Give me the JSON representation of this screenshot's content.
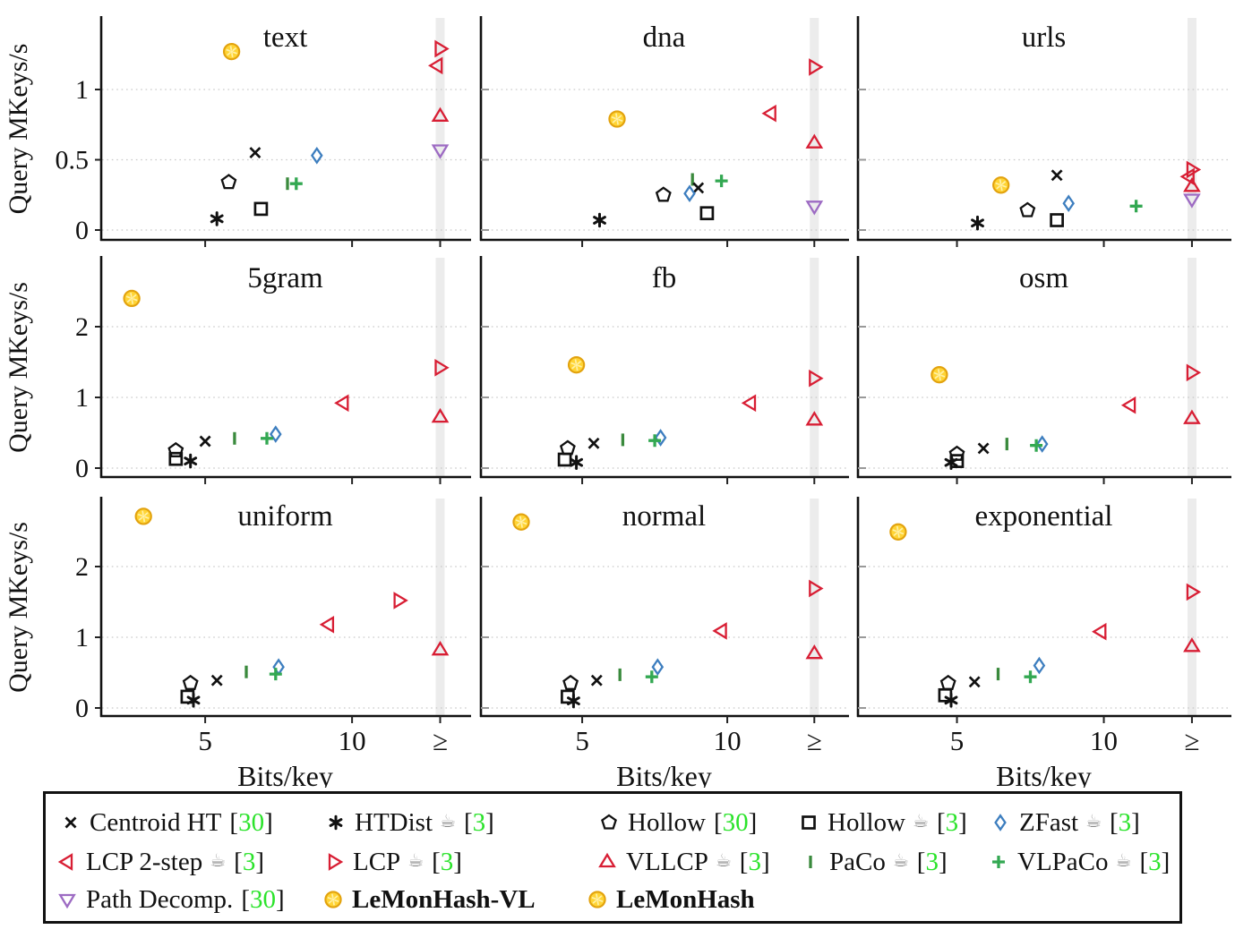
{
  "labels": {
    "ylabel": "Query MKeys/s",
    "xlabel": "Bits/key",
    "yticks_top": [
      "0",
      "0.5",
      "1"
    ],
    "yticks_mid": [
      "0",
      "1",
      "2"
    ],
    "xticks": [
      "5",
      "10",
      "≥"
    ]
  },
  "misc": {
    "cite_open": "[",
    "cite_close": "]",
    "coffee_glyph": "☕"
  },
  "colors": {
    "black": "#111111",
    "red": "#d81e34",
    "blue": "#3d7ebf",
    "paco_green": "#3a8a3d",
    "vlpaco_green": "#33a852",
    "purple": "#9d6bc3",
    "lemon_fill": "#FFD435",
    "lemon_rim": "#E2A20E",
    "cite_green": "#2be32b",
    "band_gray": "#ececec",
    "grid_gray": "#c9c9c9"
  },
  "series_defs": [
    {
      "id": "centroid",
      "label": "Centroid HT",
      "marker": "cross",
      "color": "#111111",
      "cite": "30",
      "coffee": false,
      "bold": false
    },
    {
      "id": "htdist",
      "label": "HTDist",
      "marker": "asterisk",
      "color": "#111111",
      "cite": "3",
      "coffee": true,
      "bold": false
    },
    {
      "id": "hollow30",
      "label": "Hollow",
      "marker": "pentagon",
      "color": "#111111",
      "cite": "30",
      "coffee": false,
      "bold": false
    },
    {
      "id": "hollow3",
      "label": "Hollow",
      "marker": "square",
      "color": "#111111",
      "cite": "3",
      "coffee": true,
      "bold": false
    },
    {
      "id": "zfast",
      "label": "ZFast",
      "marker": "diamond",
      "color": "#3d7ebf",
      "cite": "3",
      "coffee": true,
      "bold": false
    },
    {
      "id": "lcp2",
      "label": "LCP 2-step",
      "marker": "tri-left",
      "color": "#d81e34",
      "cite": "3",
      "coffee": true,
      "bold": false
    },
    {
      "id": "lcp",
      "label": "LCP",
      "marker": "tri-right",
      "color": "#d81e34",
      "cite": "3",
      "coffee": true,
      "bold": false
    },
    {
      "id": "vllcp",
      "label": "VLLCP",
      "marker": "tri-up",
      "color": "#d81e34",
      "cite": "3",
      "coffee": true,
      "bold": false
    },
    {
      "id": "paco",
      "label": "PaCo",
      "marker": "bar",
      "color": "#3a8a3d",
      "cite": "3",
      "coffee": true,
      "bold": false
    },
    {
      "id": "vlpaco",
      "label": "VLPaCo",
      "marker": "plus",
      "color": "#33a852",
      "cite": "3",
      "coffee": true,
      "bold": false
    },
    {
      "id": "pathdecomp",
      "label": "Path Decomp.",
      "marker": "tri-down",
      "color": "#9d6bc3",
      "cite": "30",
      "coffee": false,
      "bold": false
    },
    {
      "id": "lemonvl",
      "label": "LeMonHash-VL",
      "marker": "lemon",
      "color": "#FFD435",
      "cite": null,
      "coffee": false,
      "bold": true
    },
    {
      "id": "lemon",
      "label": "LeMonHash",
      "marker": "lemon",
      "color": "#FFD435",
      "cite": null,
      "coffee": false,
      "bold": true
    }
  ],
  "chart_data": [
    {
      "type": "scatter",
      "title": "text",
      "xlabel": "Bits/key",
      "ylabel": "Query MKeys/s",
      "xlim": [
        1.5,
        14.2
      ],
      "ylim": [
        0,
        1.48
      ],
      "xticks": [
        5,
        10
      ],
      "band_x": 13,
      "yticks": [
        0,
        0.5,
        1
      ],
      "grid": true,
      "points": [
        {
          "s": "lemonvl",
          "x": 5.9,
          "y": 1.27
        },
        {
          "s": "lcp",
          "x": 13,
          "y": 1.29,
          "capped": true
        },
        {
          "s": "lcp2",
          "x": 12.9,
          "y": 1.17,
          "capped": true
        },
        {
          "s": "vllcp",
          "x": 13,
          "y": 0.81,
          "capped": true
        },
        {
          "s": "pathdecomp",
          "x": 13,
          "y": 0.57,
          "capped": true
        },
        {
          "s": "centroid",
          "x": 6.7,
          "y": 0.55
        },
        {
          "s": "zfast",
          "x": 8.8,
          "y": 0.53
        },
        {
          "s": "hollow30",
          "x": 5.8,
          "y": 0.34
        },
        {
          "s": "paco",
          "x": 7.8,
          "y": 0.33
        },
        {
          "s": "vlpaco",
          "x": 8.1,
          "y": 0.33
        },
        {
          "s": "hollow3",
          "x": 6.9,
          "y": 0.15
        },
        {
          "s": "htdist",
          "x": 5.4,
          "y": 0.08
        }
      ]
    },
    {
      "type": "scatter",
      "title": "dna",
      "xlabel": "Bits/key",
      "ylabel": "Query MKeys/s",
      "xlim": [
        1.5,
        14.2
      ],
      "ylim": [
        0,
        1.48
      ],
      "xticks": [
        5,
        10
      ],
      "band_x": 13,
      "yticks": [
        0,
        0.5,
        1
      ],
      "grid": true,
      "points": [
        {
          "s": "lcp",
          "x": 13,
          "y": 1.16,
          "capped": true
        },
        {
          "s": "lcp2",
          "x": 11.5,
          "y": 0.83
        },
        {
          "s": "lemonvl",
          "x": 6.2,
          "y": 0.79
        },
        {
          "s": "vllcp",
          "x": 13,
          "y": 0.62,
          "capped": true
        },
        {
          "s": "vlpaco",
          "x": 9.8,
          "y": 0.35
        },
        {
          "s": "paco",
          "x": 8.8,
          "y": 0.36
        },
        {
          "s": "centroid",
          "x": 9.0,
          "y": 0.3
        },
        {
          "s": "zfast",
          "x": 8.7,
          "y": 0.26
        },
        {
          "s": "hollow30",
          "x": 7.8,
          "y": 0.25
        },
        {
          "s": "pathdecomp",
          "x": 13,
          "y": 0.17,
          "capped": true
        },
        {
          "s": "hollow3",
          "x": 9.3,
          "y": 0.12
        },
        {
          "s": "htdist",
          "x": 5.6,
          "y": 0.07
        }
      ]
    },
    {
      "type": "scatter",
      "title": "urls",
      "xlabel": "Bits/key",
      "ylabel": "Query MKeys/s",
      "xlim": [
        1.5,
        14.2
      ],
      "ylim": [
        0,
        1.48
      ],
      "xticks": [
        5,
        10
      ],
      "band_x": 13,
      "yticks": [
        0,
        0.5,
        1
      ],
      "grid": true,
      "points": [
        {
          "s": "lcp",
          "x": 13,
          "y": 0.43,
          "capped": true
        },
        {
          "s": "lcp2",
          "x": 12.9,
          "y": 0.38,
          "capped": true
        },
        {
          "s": "centroid",
          "x": 8.4,
          "y": 0.39
        },
        {
          "s": "lemonvl",
          "x": 6.5,
          "y": 0.32
        },
        {
          "s": "vllcp",
          "x": 13,
          "y": 0.31,
          "capped": true
        },
        {
          "s": "pathdecomp",
          "x": 13,
          "y": 0.22,
          "capped": true
        },
        {
          "s": "zfast",
          "x": 8.8,
          "y": 0.19
        },
        {
          "s": "vlpaco",
          "x": 11.1,
          "y": 0.17
        },
        {
          "s": "hollow30",
          "x": 7.4,
          "y": 0.14
        },
        {
          "s": "hollow3",
          "x": 8.4,
          "y": 0.07
        },
        {
          "s": "htdist",
          "x": 5.7,
          "y": 0.05
        }
      ]
    },
    {
      "type": "scatter",
      "title": "5gram",
      "xlabel": "Bits/key",
      "ylabel": "Query MKeys/s",
      "xlim": [
        1.5,
        14.2
      ],
      "ylim": [
        0,
        2.92
      ],
      "xticks": [
        5,
        10
      ],
      "band_x": 13,
      "yticks": [
        0,
        1,
        2
      ],
      "grid": true,
      "points": [
        {
          "s": "lemon",
          "x": 2.5,
          "y": 2.4
        },
        {
          "s": "lcp",
          "x": 13,
          "y": 1.42,
          "capped": true
        },
        {
          "s": "lcp2",
          "x": 9.7,
          "y": 0.92
        },
        {
          "s": "vllcp",
          "x": 13,
          "y": 0.72,
          "capped": true
        },
        {
          "s": "zfast",
          "x": 7.4,
          "y": 0.48
        },
        {
          "s": "vlpaco",
          "x": 7.1,
          "y": 0.42
        },
        {
          "s": "paco",
          "x": 6.0,
          "y": 0.42
        },
        {
          "s": "centroid",
          "x": 5.0,
          "y": 0.38
        },
        {
          "s": "hollow30",
          "x": 4.0,
          "y": 0.25
        },
        {
          "s": "hollow3",
          "x": 4.0,
          "y": 0.13
        },
        {
          "s": "htdist",
          "x": 4.5,
          "y": 0.1
        }
      ]
    },
    {
      "type": "scatter",
      "title": "fb",
      "xlabel": "Bits/key",
      "ylabel": "Query MKeys/s",
      "xlim": [
        1.5,
        14.2
      ],
      "ylim": [
        0,
        2.92
      ],
      "xticks": [
        5,
        10
      ],
      "band_x": 13,
      "yticks": [
        0,
        1,
        2
      ],
      "grid": true,
      "points": [
        {
          "s": "lemon",
          "x": 4.8,
          "y": 1.46
        },
        {
          "s": "lcp",
          "x": 13,
          "y": 1.27,
          "capped": true
        },
        {
          "s": "lcp2",
          "x": 10.8,
          "y": 0.92
        },
        {
          "s": "vllcp",
          "x": 13,
          "y": 0.68,
          "capped": true
        },
        {
          "s": "zfast",
          "x": 7.7,
          "y": 0.43
        },
        {
          "s": "vlpaco",
          "x": 7.5,
          "y": 0.39
        },
        {
          "s": "paco",
          "x": 6.4,
          "y": 0.4
        },
        {
          "s": "centroid",
          "x": 5.4,
          "y": 0.35
        },
        {
          "s": "hollow30",
          "x": 4.5,
          "y": 0.28
        },
        {
          "s": "hollow3",
          "x": 4.4,
          "y": 0.12
        },
        {
          "s": "htdist",
          "x": 4.8,
          "y": 0.08
        }
      ]
    },
    {
      "type": "scatter",
      "title": "osm",
      "xlabel": "Bits/key",
      "ylabel": "Query MKeys/s",
      "xlim": [
        1.5,
        14.2
      ],
      "ylim": [
        0,
        2.92
      ],
      "xticks": [
        5,
        10
      ],
      "band_x": 13,
      "yticks": [
        0,
        1,
        2
      ],
      "grid": true,
      "points": [
        {
          "s": "lcp",
          "x": 13,
          "y": 1.35,
          "capped": true
        },
        {
          "s": "lemon",
          "x": 4.4,
          "y": 1.32
        },
        {
          "s": "lcp2",
          "x": 10.9,
          "y": 0.89
        },
        {
          "s": "vllcp",
          "x": 13,
          "y": 0.7,
          "capped": true
        },
        {
          "s": "zfast",
          "x": 7.9,
          "y": 0.34
        },
        {
          "s": "vlpaco",
          "x": 7.7,
          "y": 0.32
        },
        {
          "s": "paco",
          "x": 6.7,
          "y": 0.34
        },
        {
          "s": "centroid",
          "x": 5.9,
          "y": 0.28
        },
        {
          "s": "hollow30",
          "x": 5.0,
          "y": 0.2
        },
        {
          "s": "hollow3",
          "x": 5.0,
          "y": 0.1
        },
        {
          "s": "htdist",
          "x": 4.8,
          "y": 0.08
        }
      ]
    },
    {
      "type": "scatter",
      "title": "uniform",
      "xlabel": "Bits/key",
      "ylabel": "Query MKeys/s",
      "xlim": [
        1.5,
        14.2
      ],
      "ylim": [
        0,
        2.92
      ],
      "xticks": [
        5,
        10
      ],
      "band_x": 13,
      "yticks": [
        0,
        1,
        2
      ],
      "grid": true,
      "points": [
        {
          "s": "lemon",
          "x": 2.9,
          "y": 2.71
        },
        {
          "s": "lcp",
          "x": 11.6,
          "y": 1.52
        },
        {
          "s": "lcp2",
          "x": 9.2,
          "y": 1.18
        },
        {
          "s": "vllcp",
          "x": 13,
          "y": 0.82,
          "capped": true
        },
        {
          "s": "zfast",
          "x": 7.5,
          "y": 0.58
        },
        {
          "s": "paco",
          "x": 6.4,
          "y": 0.51
        },
        {
          "s": "vlpaco",
          "x": 7.4,
          "y": 0.48
        },
        {
          "s": "centroid",
          "x": 5.4,
          "y": 0.39
        },
        {
          "s": "hollow30",
          "x": 4.5,
          "y": 0.35
        },
        {
          "s": "hollow3",
          "x": 4.4,
          "y": 0.16
        },
        {
          "s": "htdist",
          "x": 4.6,
          "y": 0.11
        }
      ]
    },
    {
      "type": "scatter",
      "title": "normal",
      "xlabel": "Bits/key",
      "ylabel": "Query MKeys/s",
      "xlim": [
        1.5,
        14.2
      ],
      "ylim": [
        0,
        2.92
      ],
      "xticks": [
        5,
        10
      ],
      "band_x": 13,
      "yticks": [
        0,
        1,
        2
      ],
      "grid": true,
      "points": [
        {
          "s": "lemon",
          "x": 2.9,
          "y": 2.63
        },
        {
          "s": "lcp",
          "x": 13,
          "y": 1.69,
          "capped": true
        },
        {
          "s": "lcp2",
          "x": 9.8,
          "y": 1.09
        },
        {
          "s": "vllcp",
          "x": 13,
          "y": 0.77,
          "capped": true
        },
        {
          "s": "zfast",
          "x": 7.6,
          "y": 0.58
        },
        {
          "s": "paco",
          "x": 6.3,
          "y": 0.47
        },
        {
          "s": "vlpaco",
          "x": 7.4,
          "y": 0.44
        },
        {
          "s": "centroid",
          "x": 5.5,
          "y": 0.39
        },
        {
          "s": "hollow30",
          "x": 4.6,
          "y": 0.35
        },
        {
          "s": "hollow3",
          "x": 4.5,
          "y": 0.16
        },
        {
          "s": "htdist",
          "x": 4.7,
          "y": 0.1
        }
      ]
    },
    {
      "type": "scatter",
      "title": "exponential",
      "xlabel": "Bits/key",
      "ylabel": "Query MKeys/s",
      "xlim": [
        1.5,
        14.2
      ],
      "ylim": [
        0,
        2.92
      ],
      "xticks": [
        5,
        10
      ],
      "band_x": 13,
      "yticks": [
        0,
        1,
        2
      ],
      "grid": true,
      "points": [
        {
          "s": "lemon",
          "x": 3.0,
          "y": 2.49
        },
        {
          "s": "lcp",
          "x": 13,
          "y": 1.64,
          "capped": true
        },
        {
          "s": "lcp2",
          "x": 9.9,
          "y": 1.08
        },
        {
          "s": "vllcp",
          "x": 13,
          "y": 0.87,
          "capped": true
        },
        {
          "s": "zfast",
          "x": 7.8,
          "y": 0.6
        },
        {
          "s": "paco",
          "x": 6.4,
          "y": 0.48
        },
        {
          "s": "vlpaco",
          "x": 7.5,
          "y": 0.44
        },
        {
          "s": "centroid",
          "x": 5.6,
          "y": 0.37
        },
        {
          "s": "hollow30",
          "x": 4.7,
          "y": 0.35
        },
        {
          "s": "hollow3",
          "x": 4.6,
          "y": 0.18
        },
        {
          "s": "htdist",
          "x": 4.8,
          "y": 0.11
        }
      ]
    }
  ]
}
